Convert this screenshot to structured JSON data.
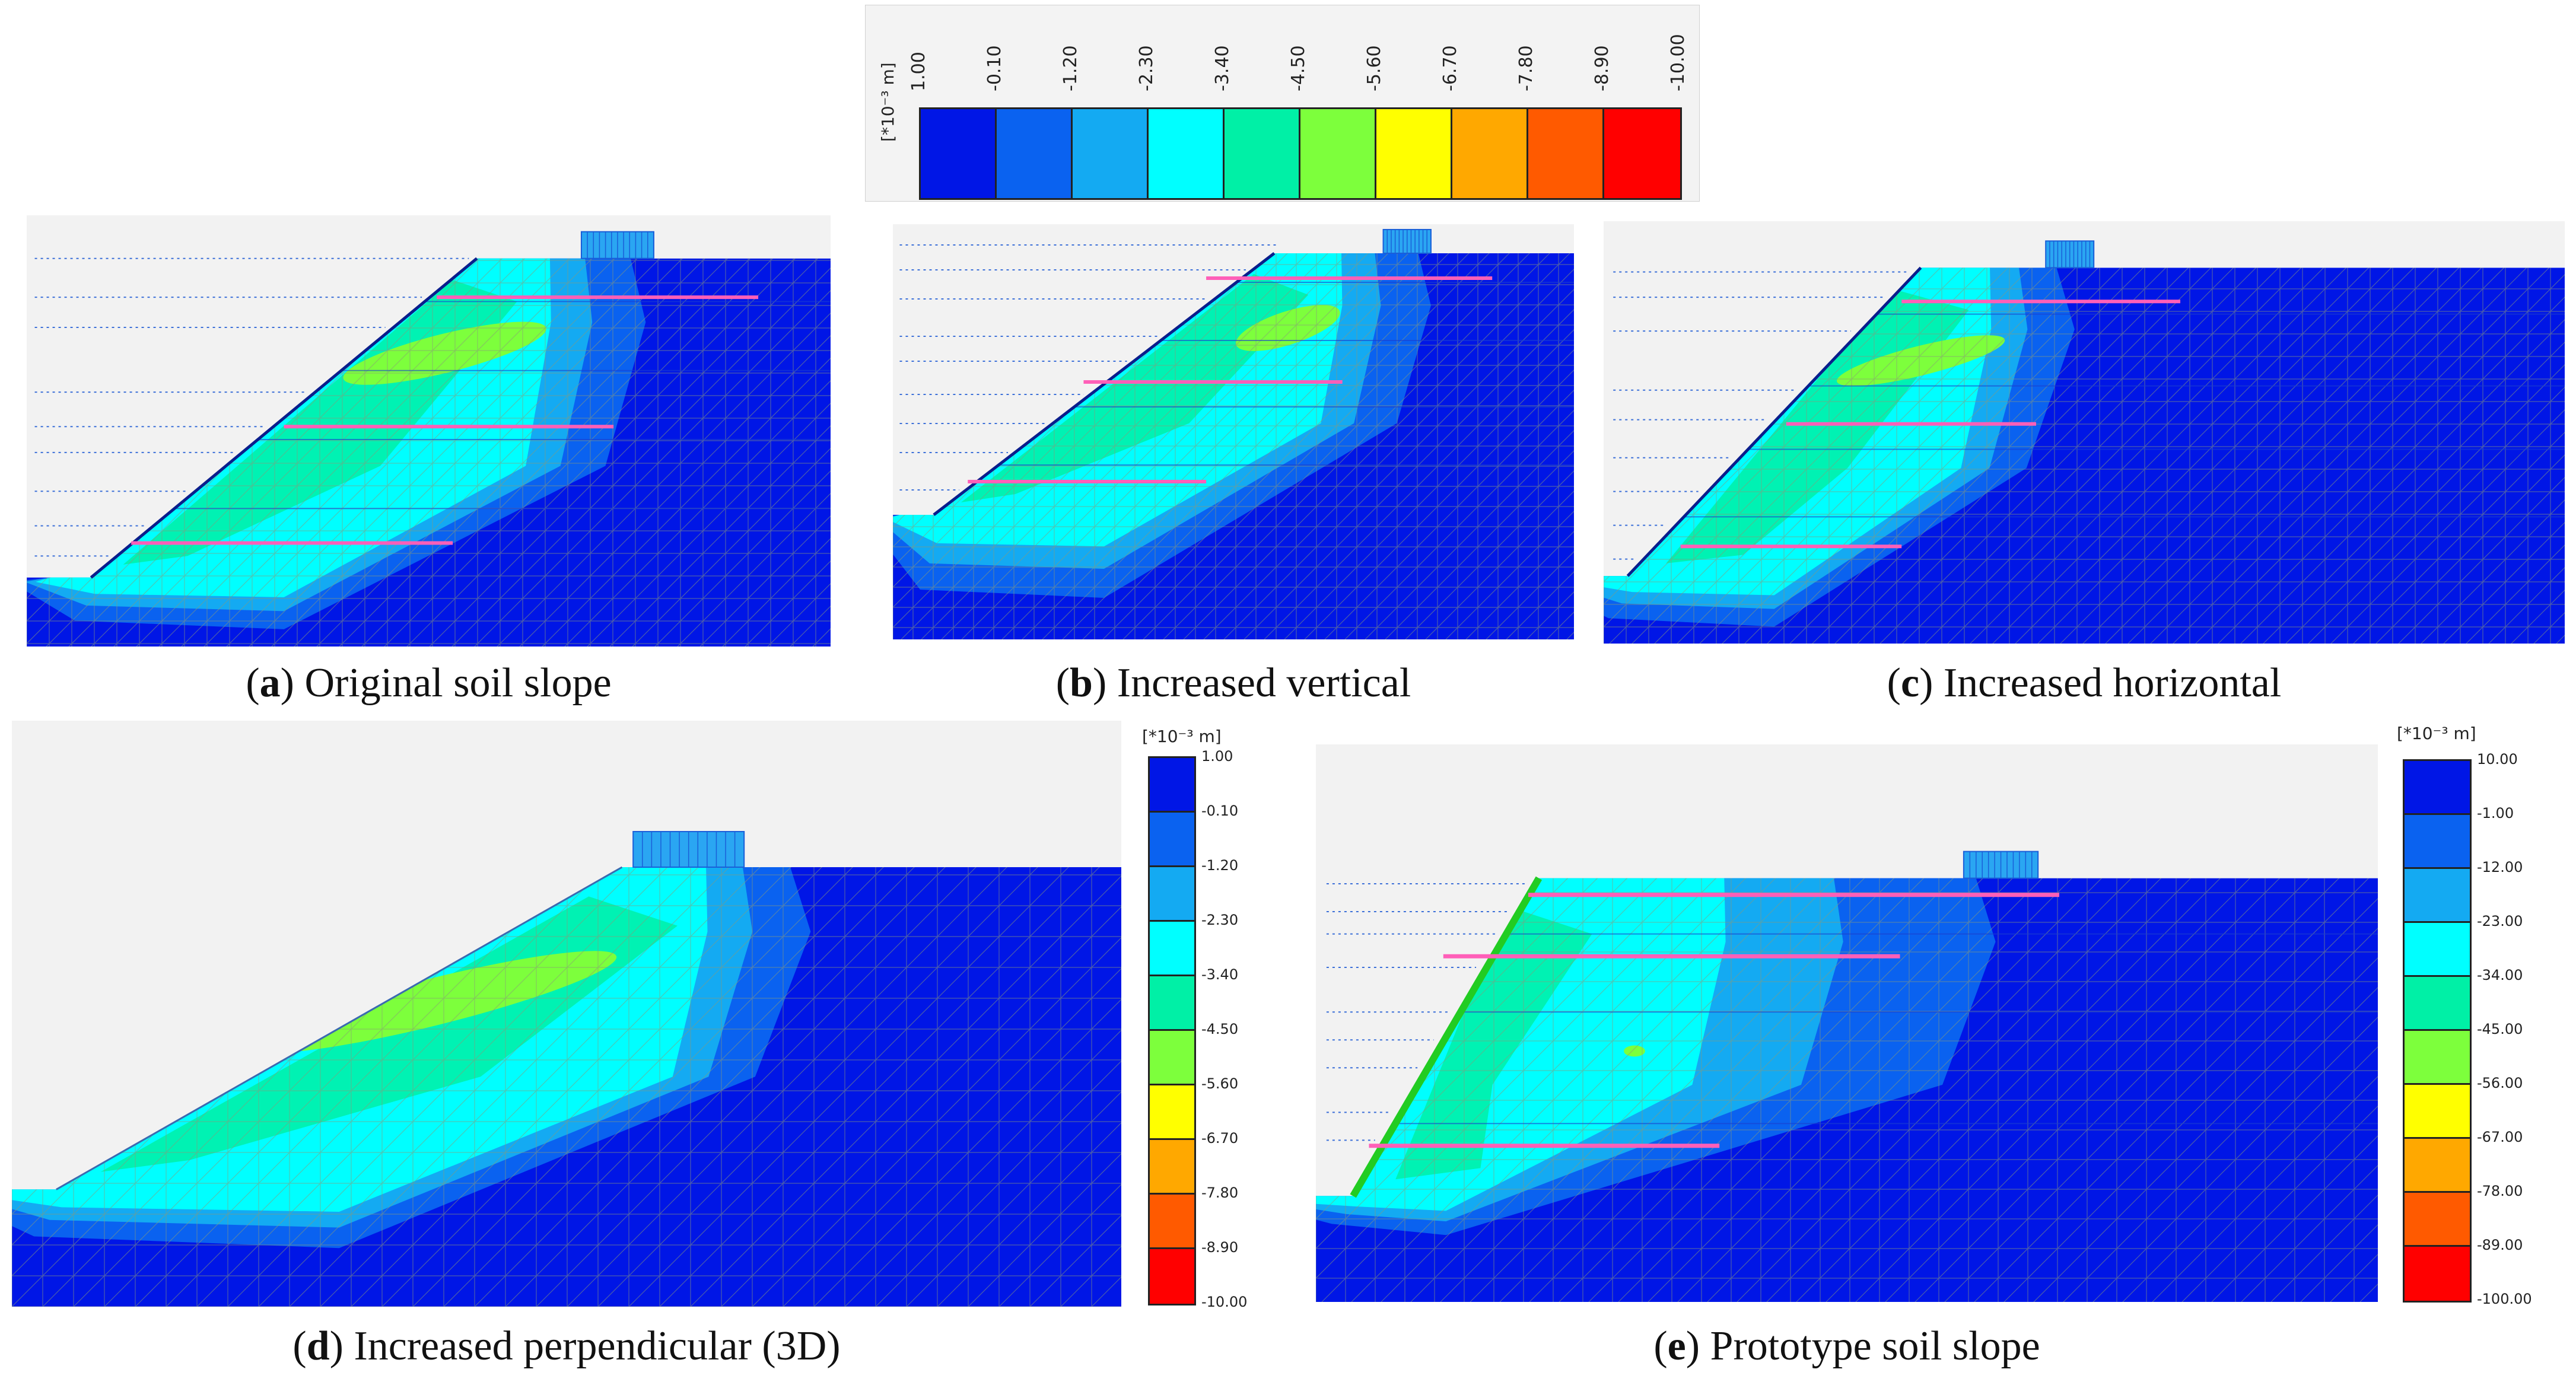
{
  "palette": [
    "#0016e6",
    "#0a62f0",
    "#14aaf2",
    "#00ffff",
    "#00f0a6",
    "#7dff3c",
    "#ffff00",
    "#ffa800",
    "#ff5a00",
    "#ff0000"
  ],
  "top_legend": {
    "unit": "[*10⁻³ m]",
    "ticks": [
      "1.00",
      "-0.10",
      "-1.20",
      "-2.30",
      "-3.40",
      "-4.50",
      "-5.60",
      "-6.70",
      "-7.80",
      "-8.90",
      "-10.00"
    ]
  },
  "legend_d": {
    "unit": "[*10⁻³ m]",
    "ticks": [
      "1.00",
      "-0.10",
      "-1.20",
      "-2.30",
      "-3.40",
      "-4.50",
      "-5.60",
      "-6.70",
      "-7.80",
      "-8.90",
      "-10.00"
    ]
  },
  "legend_e": {
    "unit": "[*10⁻³ m]",
    "ticks": [
      "10.00",
      "-1.00",
      "-12.00",
      "-23.00",
      "-34.00",
      "-45.00",
      "-56.00",
      "-67.00",
      "-78.00",
      "-89.00",
      "-100.00"
    ]
  },
  "captions": {
    "a": {
      "letter": "a",
      "text": " Original soil slope"
    },
    "b": {
      "letter": "b",
      "text": " Increased vertical"
    },
    "c": {
      "letter": "c",
      "text": " Increased horizontal"
    },
    "d": {
      "letter": "d",
      "text": " Increased perpendicular (3D)"
    },
    "e": {
      "letter": "e",
      "text": " Prototype soil slope"
    }
  }
}
